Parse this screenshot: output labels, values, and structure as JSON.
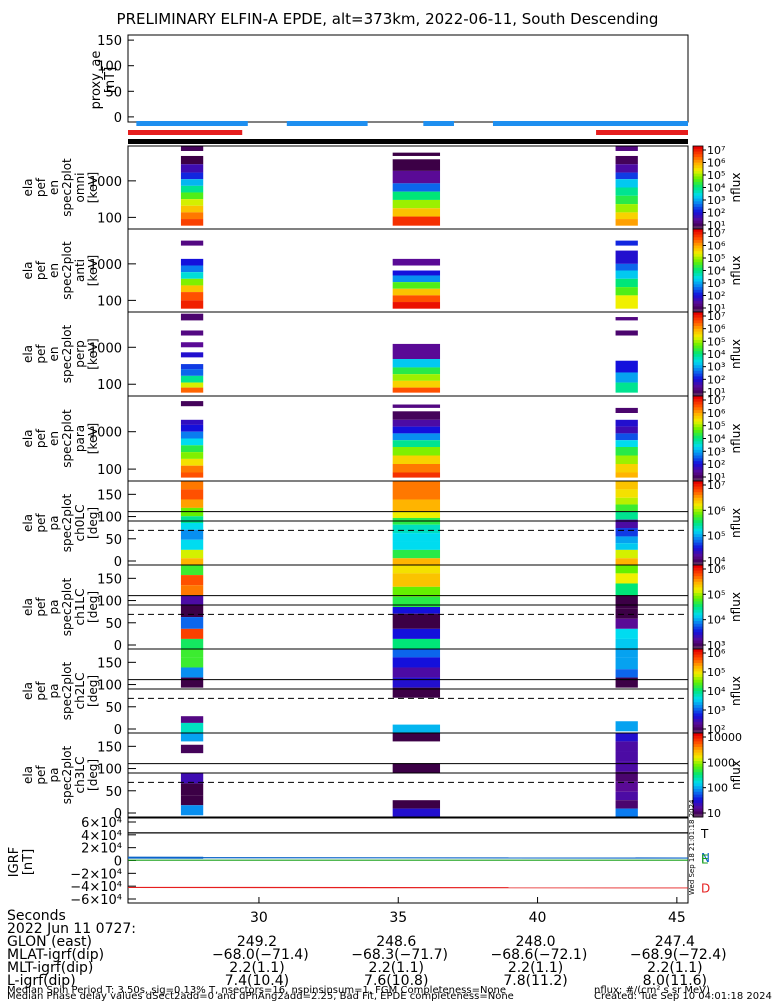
{
  "title": "PRELIMINARY ELFIN-A EPDE, alt=373km, 2022-06-11, South Descending",
  "colors": {
    "blue_bar": "#1e8ff0",
    "red_bar": "#e61e1e",
    "black_bar": "#000000"
  },
  "chart_data": [
    {
      "type": "line",
      "name": "proxy_ae",
      "ylabel": [
        "proxy_ae",
        "[nT]"
      ],
      "ylim": [
        -10,
        160
      ],
      "yticks": [
        "150",
        "100",
        "50",
        "0"
      ],
      "series": []
    },
    {
      "type": "heatmap",
      "name": "spec_omni",
      "ylabel": [
        "ela",
        "pef",
        "en",
        "spec2plot",
        "omni",
        "[keV]"
      ],
      "yticks": [
        "1000",
        "100"
      ],
      "colorbar_ticks": [
        "10⁷",
        "10⁶",
        "10⁵",
        "10⁴",
        "10³",
        "10²",
        "10¹"
      ],
      "colorbar_label": "nflux"
    },
    {
      "type": "heatmap",
      "name": "spec_anti",
      "ylabel": [
        "ela",
        "pef",
        "en",
        "spec2plot",
        "anti",
        "[keV]"
      ],
      "yticks": [
        "1000",
        "100"
      ],
      "colorbar_ticks": [
        "10⁷",
        "10⁶",
        "10⁵",
        "10⁴",
        "10³",
        "10²",
        "10¹"
      ],
      "colorbar_label": "nflux"
    },
    {
      "type": "heatmap",
      "name": "spec_perp",
      "ylabel": [
        "ela",
        "pef",
        "en",
        "spec2plot",
        "perp",
        "[keV]"
      ],
      "yticks": [
        "1000",
        "100"
      ],
      "colorbar_ticks": [
        "10⁷",
        "10⁶",
        "10⁵",
        "10⁴",
        "10³",
        "10²",
        "10¹"
      ],
      "colorbar_label": "nflux"
    },
    {
      "type": "heatmap",
      "name": "spec_para",
      "ylabel": [
        "ela",
        "pef",
        "en",
        "spec2plot",
        "para",
        "[keV]"
      ],
      "yticks": [
        "1000",
        "100"
      ],
      "colorbar_ticks": [
        "10⁷",
        "10⁶",
        "10⁵",
        "10⁴",
        "10³",
        "10²",
        "10¹"
      ],
      "colorbar_label": "nflux"
    },
    {
      "type": "heatmap",
      "name": "pa_ch0",
      "ylabel": [
        "ela",
        "pef",
        "pa",
        "spec2plot",
        "ch0LC",
        "[deg]"
      ],
      "yticks": [
        "150",
        "100",
        "50",
        "0"
      ],
      "colorbar_ticks": [
        "10⁷",
        "10⁶",
        "10⁵",
        "10⁴"
      ],
      "colorbar_label": "nflux"
    },
    {
      "type": "heatmap",
      "name": "pa_ch1",
      "ylabel": [
        "ela",
        "pef",
        "pa",
        "spec2plot",
        "ch1LC",
        "[deg]"
      ],
      "yticks": [
        "150",
        "100",
        "50",
        "0"
      ],
      "colorbar_ticks": [
        "10⁶",
        "10⁵",
        "10⁴",
        "10³"
      ],
      "colorbar_label": "nflux"
    },
    {
      "type": "heatmap",
      "name": "pa_ch2",
      "ylabel": [
        "ela",
        "pef",
        "pa",
        "spec2plot",
        "ch2LC",
        "[deg]"
      ],
      "yticks": [
        "150",
        "100",
        "50",
        "0"
      ],
      "colorbar_ticks": [
        "10⁶",
        "10⁵",
        "10⁴",
        "10³",
        "10²"
      ],
      "colorbar_label": "nflux"
    },
    {
      "type": "heatmap",
      "name": "pa_ch3",
      "ylabel": [
        "ela",
        "pef",
        "pa",
        "spec2plot",
        "ch3LC",
        "[deg]"
      ],
      "yticks": [
        "150",
        "100",
        "50",
        "0"
      ],
      "colorbar_ticks": [
        "10000",
        "1000",
        "100",
        "10"
      ],
      "colorbar_label": "nflux"
    },
    {
      "type": "line",
      "name": "igrf",
      "ylabel": [
        "IGRF",
        "[nT]"
      ],
      "ylim": [
        -60000,
        60000
      ],
      "yticks": [
        "6×10⁴",
        "4×10⁴",
        "2×10⁴",
        "0",
        "−2×10⁴",
        "−4×10⁴",
        "−6×10⁴"
      ],
      "legend": [
        "T",
        "N",
        "E",
        "D"
      ],
      "series": [
        {
          "name": "T",
          "values": [
            43000,
            43000
          ]
        },
        {
          "name": "N",
          "values": [
            4500,
            3800
          ]
        },
        {
          "name": "E",
          "values": [
            500,
            500
          ]
        },
        {
          "name": "D",
          "values": [
            -42000,
            -42500
          ]
        }
      ]
    }
  ],
  "xaxis": {
    "min": 25.3,
    "max": 45.4,
    "ticks": [
      "30",
      "35",
      "40",
      "45"
    ],
    "tick_values": [
      30,
      35,
      40,
      45
    ]
  },
  "annotation": "Wed Sep 18 21:01:18 2024",
  "bottom": {
    "labels": [
      "Seconds",
      "2022 Jun 11 0727:",
      "GLON (east)",
      "MLAT-igrf(dip)",
      "MLT-igrf(dip)",
      "L-igrf(dip)"
    ],
    "columns": [
      [
        "249.2",
        "−68.0(−71.4)",
        "2.2(1.1)",
        "7.4(10.4)"
      ],
      [
        "248.6",
        "−68.3(−71.7)",
        "2.2(1.1)",
        "7.6(10.8)"
      ],
      [
        "248.0",
        "−68.6(−72.1)",
        "2.2(1.1)",
        "7.8(11.2)"
      ],
      [
        "247.4",
        "−68.9(−72.4)",
        "2.2(1.1)",
        "8.0(11.6)"
      ]
    ]
  },
  "footer": {
    "line1": "Median Spin Period T: 3.50s, sig=0.13% T, nsectors=16, nspinsinsum=1, FGM Completeness=None",
    "line2": "Median Phase delay values dSect2add=0 and dPhAng2add=2.25, Bad Fit, EPDE completeness=None",
    "right1": "nflux: #/(cm² s sr MeV)",
    "right2": "Created: Tue Sep 10 04:01:18 2024"
  }
}
